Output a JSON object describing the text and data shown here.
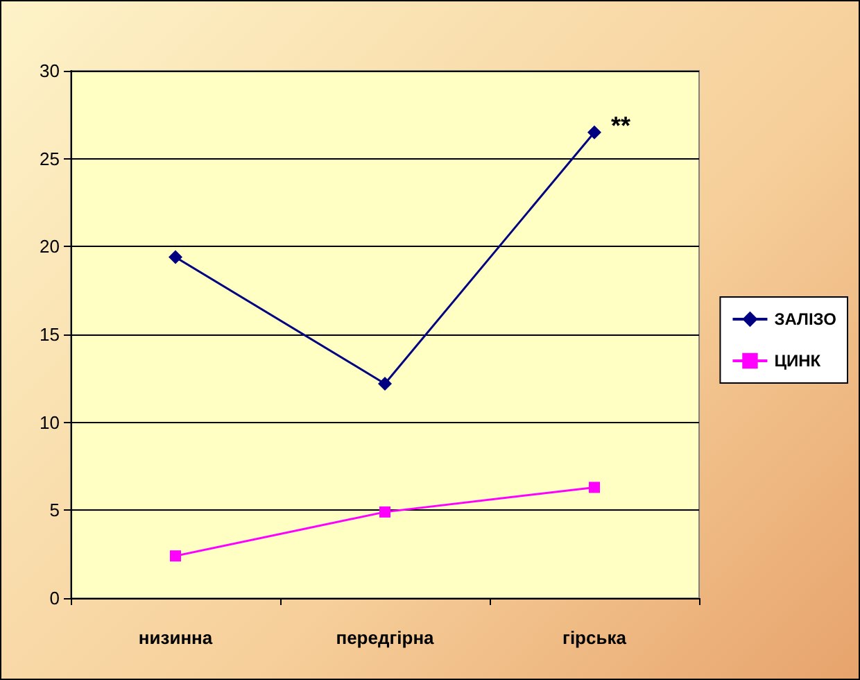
{
  "chart_data": {
    "type": "line",
    "categories": [
      "низинна",
      "передгірна",
      "гірська"
    ],
    "series": [
      {
        "name": "ЗАЛІЗО",
        "color": "#000080",
        "values": [
          19.4,
          12.2,
          26.5
        ],
        "marker": "diamond"
      },
      {
        "name": "ЦИНК",
        "color": "#ff00ff",
        "values": [
          2.4,
          4.9,
          6.3
        ],
        "marker": "square"
      }
    ],
    "ylim": [
      0,
      30
    ],
    "yticks": [
      0,
      5,
      10,
      15,
      20,
      25,
      30
    ],
    "grid": "y",
    "legend": "right",
    "annotations": [
      {
        "text": "**",
        "x": "гірська",
        "y": 26.5
      }
    ]
  }
}
